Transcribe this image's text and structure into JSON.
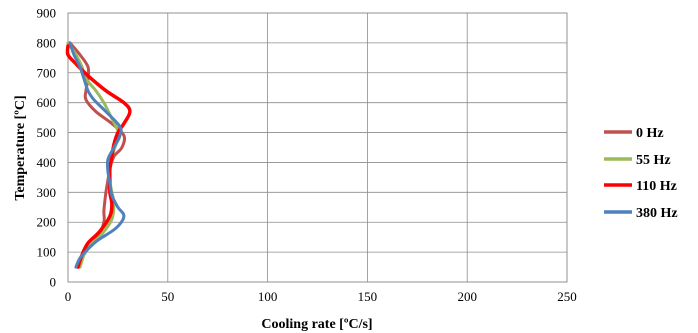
{
  "chart_data": {
    "type": "line",
    "xlabel": "Cooling rate [ºC/s]",
    "ylabel": "Temperature [ºC]",
    "xlim": [
      0,
      250
    ],
    "ylim": [
      0,
      900
    ],
    "x_ticks": [
      "0",
      "50",
      "100",
      "150",
      "200",
      "250"
    ],
    "y_ticks": [
      "0",
      "100",
      "200",
      "300",
      "400",
      "500",
      "600",
      "700",
      "800",
      "900"
    ],
    "grid": true,
    "legend_position": "right",
    "series": [
      {
        "name": "0 Hz",
        "color": "#c0504d",
        "points": [
          [
            1,
            800
          ],
          [
            6,
            760
          ],
          [
            10,
            720
          ],
          [
            10,
            680
          ],
          [
            9,
            640
          ],
          [
            9,
            610
          ],
          [
            14,
            570
          ],
          [
            22,
            530
          ],
          [
            28,
            490
          ],
          [
            27,
            450
          ],
          [
            23,
            420
          ],
          [
            21,
            380
          ],
          [
            20,
            340
          ],
          [
            19,
            300
          ],
          [
            18,
            240
          ],
          [
            18,
            200
          ],
          [
            15,
            150
          ],
          [
            11,
            120
          ],
          [
            7,
            90
          ],
          [
            4,
            50
          ]
        ]
      },
      {
        "name": "55 Hz",
        "color": "#9bbb59",
        "points": [
          [
            0,
            800
          ],
          [
            4,
            760
          ],
          [
            7,
            720
          ],
          [
            9,
            680
          ],
          [
            14,
            640
          ],
          [
            18,
            600
          ],
          [
            21,
            560
          ],
          [
            24,
            520
          ],
          [
            26,
            490
          ],
          [
            24,
            460
          ],
          [
            22,
            420
          ],
          [
            21,
            380
          ],
          [
            21,
            340
          ],
          [
            22,
            300
          ],
          [
            23,
            260
          ],
          [
            22,
            210
          ],
          [
            17,
            160
          ],
          [
            11,
            120
          ],
          [
            8,
            90
          ],
          [
            6,
            50
          ]
        ]
      },
      {
        "name": "110 Hz",
        "color": "#ff0000",
        "points": [
          [
            0,
            790
          ],
          [
            0,
            760
          ],
          [
            4,
            730
          ],
          [
            10,
            690
          ],
          [
            19,
            640
          ],
          [
            28,
            600
          ],
          [
            31,
            570
          ],
          [
            28,
            530
          ],
          [
            25,
            500
          ],
          [
            23,
            460
          ],
          [
            22,
            420
          ],
          [
            21,
            380
          ],
          [
            21,
            340
          ],
          [
            21,
            300
          ],
          [
            22,
            260
          ],
          [
            21,
            220
          ],
          [
            16,
            170
          ],
          [
            10,
            130
          ],
          [
            7,
            90
          ],
          [
            5,
            50
          ]
        ]
      },
      {
        "name": "380 Hz",
        "color": "#4f81bd",
        "points": [
          [
            1,
            800
          ],
          [
            3,
            760
          ],
          [
            6,
            720
          ],
          [
            8,
            680
          ],
          [
            10,
            640
          ],
          [
            13,
            610
          ],
          [
            19,
            570
          ],
          [
            26,
            520
          ],
          [
            26,
            490
          ],
          [
            23,
            450
          ],
          [
            20,
            410
          ],
          [
            20,
            370
          ],
          [
            21,
            330
          ],
          [
            22,
            290
          ],
          [
            25,
            250
          ],
          [
            28,
            220
          ],
          [
            24,
            180
          ],
          [
            15,
            140
          ],
          [
            10,
            110
          ],
          [
            6,
            80
          ],
          [
            4,
            50
          ]
        ]
      }
    ]
  }
}
